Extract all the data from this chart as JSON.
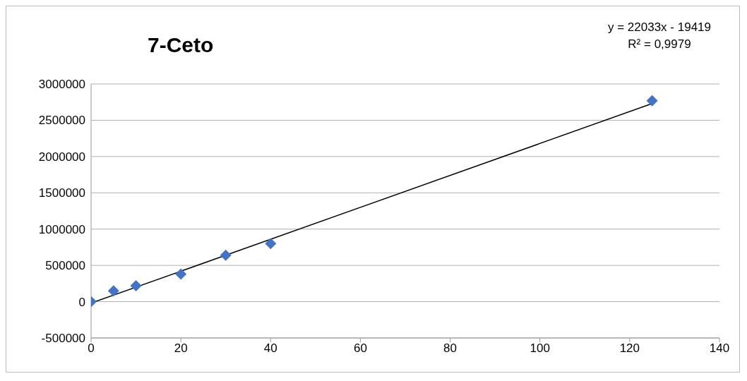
{
  "chart_data": {
    "type": "scatter",
    "title": "7-Ceto",
    "annotations": [
      "y = 22033x - 19419",
      "R² = 0,9979"
    ],
    "series": [
      {
        "color": "#4472c4",
        "x": [
          0,
          5,
          10,
          20,
          30,
          40,
          125
        ],
        "values": [
          0,
          150000,
          220000,
          380000,
          640000,
          800000,
          2770000
        ],
        "marker": "diamond"
      },
      {
        "type": "line",
        "color": "#000000",
        "x": [
          0,
          125
        ],
        "values": [
          -20000,
          2730000
        ],
        "marker": "none"
      }
    ],
    "xlim": [
      0,
      140
    ],
    "xticks": [
      0,
      20,
      40,
      60,
      80,
      100,
      120,
      140
    ],
    "ylim": [
      -500000,
      3000000
    ],
    "yticks": [
      -500000,
      0,
      500000,
      1000000,
      1500000,
      2000000,
      2500000,
      3000000
    ],
    "grid": "y"
  }
}
